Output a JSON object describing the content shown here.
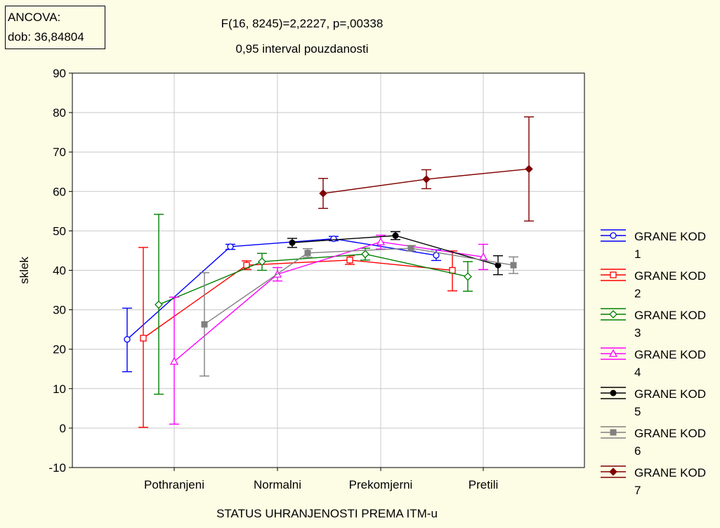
{
  "annotation": {
    "line1": "ANCOVA:",
    "line2": "dob: 36,84804"
  },
  "chart_data": {
    "type": "line",
    "title": "F(16, 8245)=2,2227, p=,00338",
    "subtitle": "0,95 interval pouzdanosti",
    "xlabel": "STATUS UHRANJENOSTI PREMA ITM-u",
    "ylabel": "sklek",
    "categories": [
      "Pothranjeni",
      "Normalni",
      "Prekomjerni",
      "Pretili"
    ],
    "ylim": [
      -10,
      90
    ],
    "yticks": [
      "-10",
      "0",
      "10",
      "20",
      "30",
      "40",
      "50",
      "60",
      "70",
      "80",
      "90"
    ],
    "grid": true,
    "legend_position": "right",
    "series": [
      {
        "name": "GRANE KOD 1",
        "color": "#0000ff",
        "marker": "circle",
        "values": [
          22.5,
          46.0,
          48.0,
          43.8
        ],
        "lower": [
          14.3,
          45.3,
          47.5,
          42.5
        ],
        "upper": [
          30.4,
          46.6,
          48.6,
          45.2
        ]
      },
      {
        "name": "GRANE KOD 2",
        "color": "#ff0000",
        "marker": "square",
        "values": [
          22.8,
          41.3,
          42.6,
          40.0
        ],
        "lower": [
          0.2,
          40.2,
          41.5,
          34.8
        ],
        "upper": [
          45.8,
          42.4,
          43.7,
          44.9
        ]
      },
      {
        "name": "GRANE KOD 3",
        "color": "#008000",
        "marker": "diamond",
        "values": [
          31.3,
          42.2,
          44.1,
          38.4
        ],
        "lower": [
          8.6,
          40.0,
          42.6,
          34.7
        ],
        "upper": [
          54.2,
          44.3,
          45.6,
          42.2
        ]
      },
      {
        "name": "GRANE KOD 4",
        "color": "#ff00ff",
        "marker": "triangle",
        "values": [
          16.9,
          39.0,
          47.2,
          43.4
        ],
        "lower": [
          1.0,
          37.3,
          45.4,
          40.2
        ],
        "upper": [
          33.2,
          40.7,
          48.9,
          46.6
        ]
      },
      {
        "name": "GRANE KOD 5",
        "color": "#000000",
        "marker": "dot",
        "values": [
          null,
          47.0,
          48.8,
          41.3
        ],
        "lower": [
          null,
          45.8,
          47.8,
          38.9
        ],
        "upper": [
          null,
          48.1,
          49.8,
          43.7
        ]
      },
      {
        "name": "GRANE KOD 6",
        "color": "#808080",
        "marker": "filled-square",
        "values": [
          26.3,
          44.4,
          45.6,
          41.3
        ],
        "lower": [
          13.2,
          43.3,
          44.9,
          39.2
        ],
        "upper": [
          39.4,
          45.5,
          46.3,
          43.4
        ]
      },
      {
        "name": "GRANE KOD 7",
        "color": "#800000",
        "marker": "filled-diamond",
        "values": [
          null,
          59.5,
          63.1,
          65.7
        ],
        "lower": [
          null,
          55.7,
          60.7,
          52.5
        ],
        "upper": [
          null,
          63.3,
          65.5,
          78.9
        ]
      }
    ]
  }
}
